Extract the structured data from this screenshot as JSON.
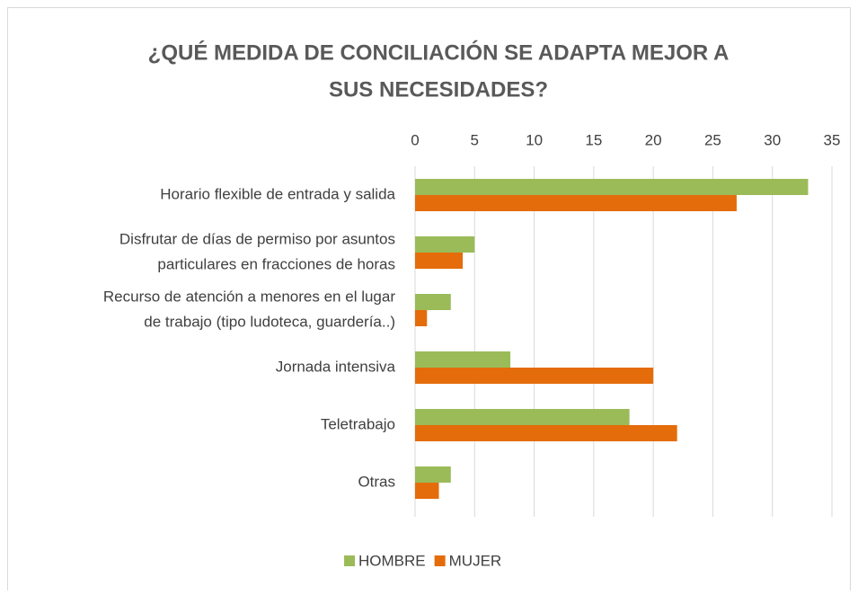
{
  "chart_data": {
    "type": "hbar",
    "title": [
      "¿QUÉ MEDIDA DE CONCILIACIÓN SE ADAPTA MEJOR A",
      "SUS NECESIDADES?"
    ],
    "categories": [
      [
        "Horario flexible de entrada y salida"
      ],
      [
        "Disfrutar de días de permiso por asuntos",
        "particulares en fracciones de horas"
      ],
      [
        "Recurso de atención a menores en el lugar",
        "de trabajo (tipo ludoteca, guardería..)"
      ],
      [
        "Jornada intensiva"
      ],
      [
        "Teletrabajo"
      ],
      [
        "Otras"
      ]
    ],
    "series": [
      {
        "name": "HOMBRE",
        "color": "#9bbb59",
        "values": [
          33,
          5,
          3,
          8,
          18,
          3
        ]
      },
      {
        "name": "MUJER",
        "color": "#e46c0a",
        "values": [
          27,
          4,
          1,
          20,
          22,
          2
        ]
      }
    ],
    "xlim": [
      0,
      35
    ],
    "xticks": [
      0,
      5,
      10,
      15,
      20,
      25,
      30,
      35
    ],
    "grid": true,
    "legend": "bottom"
  }
}
